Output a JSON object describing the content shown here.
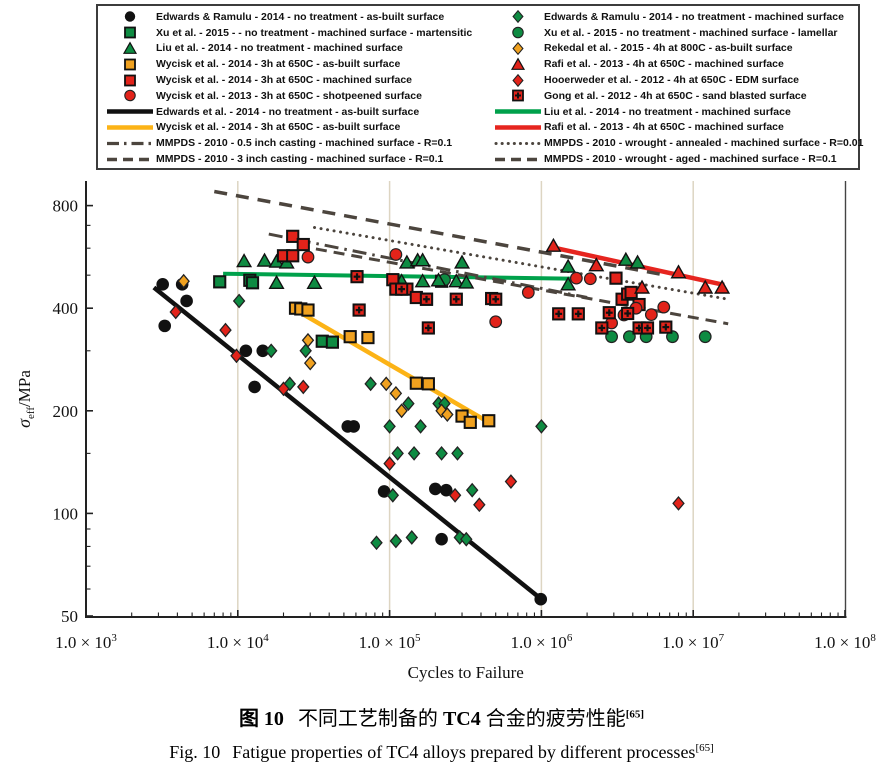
{
  "page": {
    "background": "#ffffff"
  },
  "colors": {
    "black": "#111111",
    "green": "#0e8b42",
    "green_line": "#00a14b",
    "red": "#e2231a",
    "red_line": "#e6251f",
    "orange": "#f0a11f",
    "orange_line": "#fcb316",
    "mmpds_gray": "#4c453e",
    "gridline": "#ddd5c2",
    "axis": "#222222"
  },
  "chart_data": {
    "type": "scatter",
    "title": "",
    "xlabel": "Cycles to Failure",
    "ylabel_sigma": "σ",
    "ylabel_sub": "eff",
    "ylabel_unit": "/MPa",
    "x_scale": "log",
    "x_range": [
      1000,
      100000000
    ],
    "y_scale": "log",
    "y_range": [
      50,
      935
    ],
    "grid": "vertical-only",
    "gridlines_x": [
      10000,
      100000,
      1000000,
      10000000
    ],
    "x_tick_mantissa": "1.0 × 10",
    "x_tick_exponents": [
      "3",
      "4",
      "5",
      "6",
      "7",
      "8"
    ],
    "y_tick_labels": [
      "800",
      "400",
      "200",
      "100",
      "50"
    ],
    "y_tick_values": [
      800,
      400,
      200,
      100,
      50
    ],
    "y_minor_ticks": [
      60,
      70,
      80,
      90,
      150,
      300,
      500,
      600,
      700
    ],
    "series": [
      {
        "name": "edwards-ramulu-asbuilt",
        "label": "Edwards & Ramulu - 2014 - no treatment - as-built surface",
        "marker": "circle",
        "color": "#111111",
        "points": [
          [
            3200,
            470
          ],
          [
            4300,
            470
          ],
          [
            3300,
            355
          ],
          [
            4600,
            420
          ],
          [
            11300,
            300
          ],
          [
            14600,
            300
          ],
          [
            12900,
            235
          ],
          [
            53000,
            180
          ],
          [
            58000,
            180
          ],
          [
            92000,
            116
          ],
          [
            200000,
            118
          ],
          [
            236000,
            117
          ],
          [
            220000,
            84
          ],
          [
            990000,
            56
          ]
        ]
      },
      {
        "name": "edwards-ramulu-machined",
        "label": "Edwards & Ramulu - 2014 - no treatment - machined surface",
        "marker": "diamond",
        "color": "#0e8b42",
        "points": [
          [
            10200,
            420
          ],
          [
            16600,
            300
          ],
          [
            22000,
            240
          ],
          [
            28000,
            300
          ],
          [
            75000,
            240
          ],
          [
            100000,
            180
          ],
          [
            160000,
            180
          ],
          [
            1000000,
            180
          ],
          [
            113000,
            150
          ],
          [
            145000,
            150
          ],
          [
            220000,
            150
          ],
          [
            280000,
            150
          ],
          [
            133000,
            210
          ],
          [
            210000,
            210
          ],
          [
            230000,
            210
          ],
          [
            105000,
            113
          ],
          [
            350000,
            117
          ],
          [
            82000,
            82
          ],
          [
            110000,
            83
          ],
          [
            140000,
            85
          ],
          [
            290000,
            85
          ],
          [
            320000,
            84
          ]
        ]
      },
      {
        "name": "xu-martensitic",
        "label": "Xu et al. - 2015 - - no treatment - machined surface - martensitic",
        "marker": "square",
        "color": "#0e8b42",
        "points": [
          [
            7600,
            478
          ],
          [
            12000,
            483
          ],
          [
            12500,
            475
          ],
          [
            36000,
            320
          ],
          [
            42000,
            318
          ],
          [
            220000,
            480
          ]
        ]
      },
      {
        "name": "xu-lamellar",
        "label": "Xu et al. - 2015 - no treatment - machined surface - lamellar",
        "marker": "circle",
        "color": "#0e8b42",
        "points": [
          [
            230000,
            485
          ],
          [
            2900000,
            330
          ],
          [
            3800000,
            330
          ],
          [
            4900000,
            330
          ],
          [
            7300000,
            330
          ],
          [
            12000000,
            330
          ]
        ]
      },
      {
        "name": "liu-machined",
        "label": "Liu et al. - 2014 - no treatment - machined surface",
        "marker": "triangle",
        "color": "#0e8b42",
        "points": [
          [
            11000,
            550
          ],
          [
            15000,
            552
          ],
          [
            18000,
            548
          ],
          [
            21000,
            545
          ],
          [
            18000,
            475
          ],
          [
            32000,
            475
          ],
          [
            130000,
            545
          ],
          [
            153000,
            553
          ],
          [
            165000,
            553
          ],
          [
            300000,
            545
          ],
          [
            120000,
            480
          ],
          [
            165000,
            480
          ],
          [
            210000,
            483
          ],
          [
            275000,
            480
          ],
          [
            320000,
            476
          ],
          [
            1500000,
            530
          ],
          [
            1500000,
            470
          ],
          [
            3600000,
            555
          ],
          [
            4300000,
            545
          ]
        ]
      },
      {
        "name": "rekedal-asbuilt",
        "label": "Rekedal et al. - 2015 - 4h at 800C - as-built surface",
        "marker": "diamond",
        "color": "#f0a11f",
        "points": [
          [
            4400,
            480
          ],
          [
            29000,
            322
          ],
          [
            30000,
            276
          ],
          [
            95000,
            240
          ],
          [
            110000,
            225
          ],
          [
            120000,
            200
          ],
          [
            220000,
            200
          ],
          [
            240000,
            195
          ]
        ]
      },
      {
        "name": "wycisk-asbuilt",
        "label": "Wycisk et al. - 2014 - 3h at 650C - as-built surface",
        "marker": "square",
        "color": "#f0a11f",
        "points": [
          [
            24000,
            400
          ],
          [
            26000,
            398
          ],
          [
            29000,
            395
          ],
          [
            55000,
            330
          ],
          [
            72000,
            328
          ],
          [
            150000,
            241
          ],
          [
            180000,
            240
          ],
          [
            300000,
            193
          ],
          [
            340000,
            185
          ],
          [
            450000,
            187
          ]
        ]
      },
      {
        "name": "wycisk-machined",
        "label": "Wycisk et al. - 2014 - 3h at 650C - machined surface",
        "marker": "square",
        "color": "#e2231a",
        "points": [
          [
            20000,
            570
          ],
          [
            23000,
            570
          ],
          [
            23000,
            650
          ],
          [
            27000,
            615
          ],
          [
            105000,
            485
          ],
          [
            110000,
            455
          ],
          [
            130000,
            455
          ],
          [
            150000,
            430
          ],
          [
            175000,
            425
          ],
          [
            470000,
            427
          ],
          [
            3100000,
            490
          ],
          [
            3400000,
            425
          ],
          [
            3700000,
            440
          ],
          [
            3900000,
            445
          ],
          [
            4400000,
            410
          ]
        ]
      },
      {
        "name": "wycisk-shotpeened",
        "label": "Wycisk et al. - 2013 - 3h at 650C - shotpeened surface",
        "marker": "circle",
        "color": "#e2231a",
        "points": [
          [
            29000,
            565
          ],
          [
            110000,
            575
          ],
          [
            500000,
            365
          ],
          [
            820000,
            445
          ],
          [
            1700000,
            490
          ],
          [
            2100000,
            488
          ],
          [
            2900000,
            362
          ],
          [
            3500000,
            382
          ],
          [
            4200000,
            400
          ],
          [
            5300000,
            383
          ],
          [
            6400000,
            403
          ]
        ]
      },
      {
        "name": "rafi-machined",
        "label": "Rafi et al. - 2013 - 4h at 650C - machined surface",
        "marker": "triangle",
        "color": "#e2231a",
        "points": [
          [
            1200000,
            610
          ],
          [
            2300000,
            535
          ],
          [
            4600000,
            460
          ],
          [
            8000000,
            510
          ],
          [
            12000000,
            460
          ],
          [
            15500000,
            460
          ]
        ]
      },
      {
        "name": "hooerweder-edm",
        "label": "Hooerweder et al. - 2012 - 4h at 650C - EDM surface",
        "marker": "diamond",
        "color": "#e2231a",
        "points": [
          [
            3900,
            390
          ],
          [
            8300,
            345
          ],
          [
            9800,
            290
          ],
          [
            20000,
            232
          ],
          [
            27000,
            235
          ],
          [
            100000,
            140
          ],
          [
            270000,
            113
          ],
          [
            390000,
            106
          ],
          [
            630000,
            124
          ],
          [
            8000000,
            107
          ]
        ]
      },
      {
        "name": "gong-sandblasted",
        "label": "Gong et al. - 2012 - 4h at 650C - sand blasted surface",
        "marker": "gong",
        "color": "#e2231a",
        "points": [
          [
            61000,
            495
          ],
          [
            63000,
            395
          ],
          [
            120000,
            455
          ],
          [
            175000,
            425
          ],
          [
            275000,
            425
          ],
          [
            180000,
            350
          ],
          [
            500000,
            425
          ],
          [
            1300000,
            385
          ],
          [
            1750000,
            385
          ],
          [
            2500000,
            350
          ],
          [
            2800000,
            388
          ],
          [
            3700000,
            386
          ],
          [
            4400000,
            350
          ],
          [
            5000000,
            350
          ],
          [
            6600000,
            352
          ]
        ]
      }
    ],
    "lines": [
      {
        "name": "fit-edwards-asbuilt",
        "label": "Edwards et al. - 2014 - no treatment - as-built surface",
        "color": "#111111",
        "width": 4.5,
        "dash": "",
        "from": [
          2800,
          460
        ],
        "to": [
          1000000,
          56
        ]
      },
      {
        "name": "fit-wycisk-asbuilt",
        "label": "Wycisk et al. - 2014 - 3h at 650C - as-built surface",
        "color": "#fcb316",
        "width": 4.5,
        "dash": "",
        "from": [
          23000,
          400
        ],
        "to": [
          460000,
          184
        ]
      },
      {
        "name": "fit-liu-machined",
        "label": "Liu et al. - 2014 - no treatment - machined surface",
        "color": "#00a14b",
        "width": 4,
        "dash": "",
        "from": [
          8000,
          505
        ],
        "to": [
          1700000,
          488
        ]
      },
      {
        "name": "fit-rafi-machined",
        "label": "Rafi et al. - 2013 - 4h at 650C - machined surface",
        "color": "#e6251f",
        "width": 4.5,
        "dash": "",
        "from": [
          1150000,
          605
        ],
        "to": [
          16000000,
          468
        ]
      },
      {
        "name": "mmpds-05inch-casting",
        "label": "MMPDS - 2010 - 0.5 inch casting - machined surface - R=0.1",
        "color": "#4c453e",
        "width": 3,
        "dash": "14 6 2.5 6",
        "from": [
          16000,
          660
        ],
        "to": [
          2000000,
          430
        ]
      },
      {
        "name": "mmpds-3inch-casting",
        "label": "MMPDS - 2010 - 3 inch casting - machined surface - R=0.1",
        "color": "#4c453e",
        "width": 3.5,
        "dash": "13 9",
        "from": [
          7000,
          880
        ],
        "to": [
          6600000,
          500
        ]
      },
      {
        "name": "mmpds-wrought-annealed",
        "label": "MMPDS - 2010 - wrought - annealed - machined surface - R=0.01",
        "color": "#4c453e",
        "width": 3,
        "dash": "0.1 6.5",
        "linecap": "round",
        "from": [
          32000,
          690
        ],
        "to": [
          17000000,
          425
        ]
      },
      {
        "name": "mmpds-wrought-aged",
        "label": "MMPDS - 2010 - wrought - aged - machined surface - R=0.1",
        "color": "#4c453e",
        "width": 3,
        "dash": "11 7",
        "from": [
          25000,
          610
        ],
        "to": [
          17000000,
          360
        ]
      }
    ],
    "legend": {
      "left": [
        {
          "marker": "circle",
          "color": "#111111",
          "label": "Edwards & Ramulu - 2014 - no treatment - as-built surface"
        },
        {
          "marker": "square",
          "color": "#0e8b42",
          "label": "Xu et al. - 2015 - - no treatment - machined surface - martensitic"
        },
        {
          "marker": "triangle",
          "color": "#0e8b42",
          "label": "Liu et al. - 2014 - no treatment - machined surface"
        },
        {
          "marker": "square",
          "color": "#f0a11f",
          "label": "Wycisk et al. - 2014 - 3h at 650C - as-built surface"
        },
        {
          "marker": "square",
          "color": "#e2231a",
          "label": "Wycisk et al. - 2014 - 3h at 650C - machined surface"
        },
        {
          "marker": "circle",
          "color": "#e2231a",
          "label": "Wycisk et al. - 2013 - 3h at 650C - shotpeened surface"
        },
        {
          "marker": "line",
          "color": "#111111",
          "label": "Edwards et al. - 2014 - no treatment - as-built surface"
        },
        {
          "marker": "line",
          "color": "#fcb316",
          "label": "Wycisk et al. - 2014 - 3h at 650C - as-built surface"
        },
        {
          "marker": "line-dashdot",
          "color": "#4c453e",
          "label": "MMPDS - 2010 - 0.5 inch casting - machined surface - R=0.1"
        },
        {
          "marker": "line-dash",
          "color": "#4c453e",
          "label": "MMPDS - 2010 - 3 inch casting - machined surface - R=0.1"
        }
      ],
      "right": [
        {
          "marker": "diamond",
          "color": "#0e8b42",
          "label": "Edwards & Ramulu - 2014 - no treatment - machined surface"
        },
        {
          "marker": "circle",
          "color": "#0e8b42",
          "label": "Xu et al. - 2015 - no treatment - machined surface - lamellar"
        },
        {
          "marker": "diamond",
          "color": "#f0a11f",
          "label": "Rekedal et al. - 2015 - 4h at 800C - as-built surface"
        },
        {
          "marker": "triangle",
          "color": "#e2231a",
          "label": "Rafi et al. - 2013 - 4h at 650C - machined surface"
        },
        {
          "marker": "diamond",
          "color": "#e2231a",
          "label": "Hooerweder et al. - 2012 - 4h at 650C - EDM surface"
        },
        {
          "marker": "gong",
          "color": "#e2231a",
          "label": "Gong et al. - 2012 - 4h at 650C - sand blasted surface"
        },
        {
          "marker": "line",
          "color": "#00a14b",
          "label": "Liu et al. - 2014 - no treatment - machined surface"
        },
        {
          "marker": "line",
          "color": "#e6251f",
          "label": "Rafi et al. - 2013 - 4h at 650C - machined surface"
        },
        {
          "marker": "line-dot",
          "color": "#4c453e",
          "label": "MMPDS - 2010 - wrought - annealed - machined surface - R=0.01"
        },
        {
          "marker": "line-dash",
          "color": "#4c453e",
          "label": "MMPDS - 2010 - wrought - aged - machined surface - R=0.1"
        }
      ]
    }
  },
  "caption": {
    "zh_prefix": "图 10",
    "zh_part1": "不同工艺制备的 ",
    "zh_bold": "TC4",
    "zh_part2": " 合金的疲劳性能",
    "zh_ref": "[65]",
    "en_prefix": "Fig. 10",
    "en_text": "Fatigue properties of TC4 alloys prepared by different processes",
    "en_ref": "[65]"
  }
}
